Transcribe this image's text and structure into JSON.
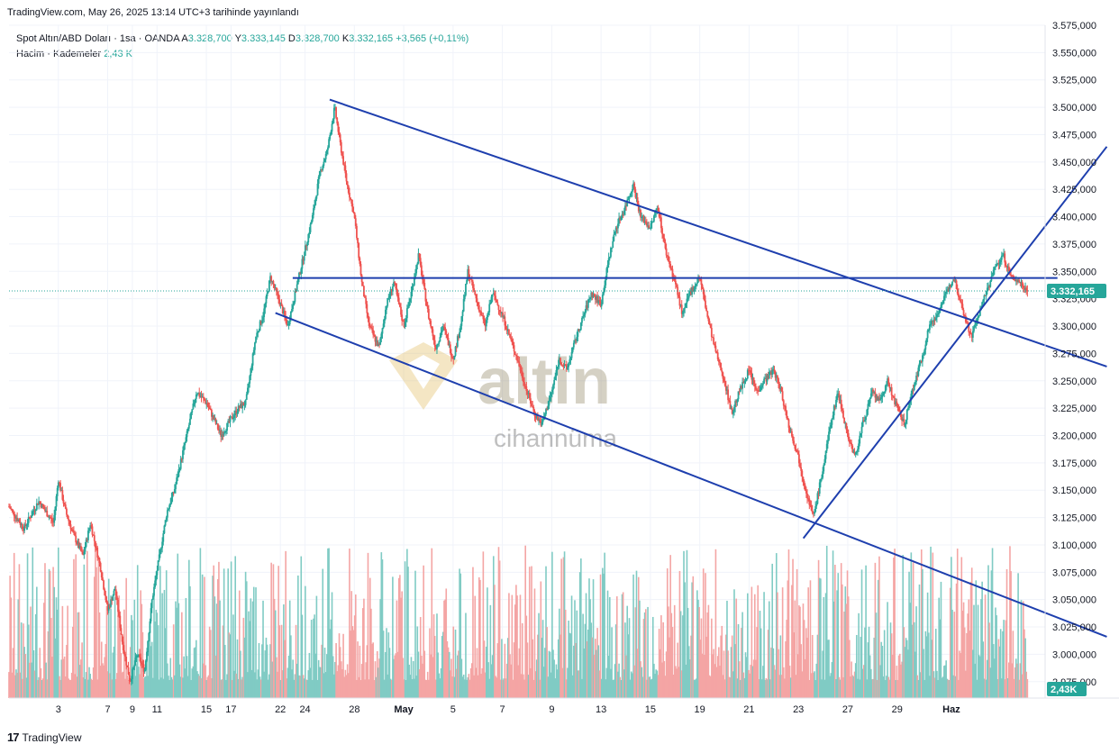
{
  "published_line": "TradingView.com, May 26, 2025 13:14 UTC+3 tarihinde yayınlandı",
  "legend": {
    "symbol": "Spot Altın/ABD Doları · 1sa · OANDA",
    "a_label": "A",
    "a_value": "3.328,700",
    "y_label": "Y",
    "y_value": "3.333,145",
    "d_label": "D",
    "d_value": "3.328,700",
    "k_label": "K",
    "k_value": "3.332,165",
    "change": "+3,565 (+0,11%)",
    "volume_label": "Hacim · Kademeler",
    "volume_value": "2,43 K"
  },
  "watermark": {
    "brand": "altin",
    "sub": "cihannüma"
  },
  "footer": {
    "logo": "TradingView"
  },
  "colors": {
    "up": "#26a69a",
    "down": "#ef5350",
    "line": "#1e3fae",
    "vol_up": "#80cbc4",
    "vol_down": "#f4a5a4"
  },
  "chart_data": {
    "type": "candlestick",
    "symbol": "Spot Altın/ABD Doları",
    "interval": "1sa",
    "y_range": [
      2960,
      3575
    ],
    "y_ticks": [
      "2.975,000",
      "3.000,000",
      "3.025,000",
      "3.050,000",
      "3.075,000",
      "3.100,000",
      "3.125,000",
      "3.150,000",
      "3.175,000",
      "3.200,000",
      "3.225,000",
      "3.250,000",
      "3.275,000",
      "3.300,000",
      "3.325,000",
      "3.350,000",
      "3.375,000",
      "3.400,000",
      "3.425,000",
      "3.450,000",
      "3.475,000",
      "3.500,000",
      "3.525,000",
      "3.550,000",
      "3.575,000"
    ],
    "y_tick_values": [
      2975,
      3000,
      3025,
      3050,
      3075,
      3100,
      3125,
      3150,
      3175,
      3200,
      3225,
      3250,
      3275,
      3300,
      3325,
      3350,
      3375,
      3400,
      3425,
      3450,
      3475,
      3500,
      3525,
      3550,
      3575
    ],
    "x_range_days": [
      0,
      42
    ],
    "x_ticks": [
      "3",
      "7",
      "9",
      "11",
      "15",
      "17",
      "22",
      "24",
      "28",
      "May",
      "5",
      "7",
      "9",
      "13",
      "15",
      "19",
      "21",
      "23",
      "27",
      "29",
      "Haz"
    ],
    "x_tick_days": [
      2,
      4,
      5,
      6,
      8,
      9,
      11,
      12,
      14,
      16,
      18,
      20,
      22,
      24,
      26,
      28,
      30,
      32,
      34,
      36,
      38.2
    ],
    "last_price_label": "3.332,165",
    "last_price": 3332.165,
    "volume_badge": "2,43K",
    "price_path": [
      [
        0,
        3135
      ],
      [
        0.6,
        3115
      ],
      [
        1.2,
        3140
      ],
      [
        1.8,
        3120
      ],
      [
        2.0,
        3160
      ],
      [
        2.3,
        3130
      ],
      [
        2.6,
        3110
      ],
      [
        3.0,
        3090
      ],
      [
        3.3,
        3120
      ],
      [
        3.7,
        3080
      ],
      [
        4.0,
        3040
      ],
      [
        4.3,
        3060
      ],
      [
        4.6,
        3010
      ],
      [
        4.9,
        2975
      ],
      [
        5.2,
        3000
      ],
      [
        5.5,
        2985
      ],
      [
        5.8,
        3050
      ],
      [
        6.1,
        3090
      ],
      [
        6.4,
        3130
      ],
      [
        6.7,
        3150
      ],
      [
        7.0,
        3180
      ],
      [
        7.3,
        3210
      ],
      [
        7.6,
        3240
      ],
      [
        8.0,
        3230
      ],
      [
        8.3,
        3215
      ],
      [
        8.6,
        3200
      ],
      [
        9.0,
        3215
      ],
      [
        9.3,
        3225
      ],
      [
        9.6,
        3230
      ],
      [
        10.0,
        3290
      ],
      [
        10.3,
        3310
      ],
      [
        10.6,
        3345
      ],
      [
        11.0,
        3320
      ],
      [
        11.3,
        3300
      ],
      [
        11.6,
        3330
      ],
      [
        12.0,
        3370
      ],
      [
        12.3,
        3400
      ],
      [
        12.6,
        3440
      ],
      [
        12.9,
        3460
      ],
      [
        13.2,
        3500
      ],
      [
        13.4,
        3470
      ],
      [
        13.7,
        3430
      ],
      [
        14.0,
        3400
      ],
      [
        14.3,
        3340
      ],
      [
        14.6,
        3300
      ],
      [
        15.0,
        3280
      ],
      [
        15.3,
        3320
      ],
      [
        15.6,
        3340
      ],
      [
        16.0,
        3300
      ],
      [
        16.3,
        3330
      ],
      [
        16.6,
        3365
      ],
      [
        17.0,
        3310
      ],
      [
        17.3,
        3280
      ],
      [
        17.6,
        3300
      ],
      [
        18.0,
        3270
      ],
      [
        18.3,
        3300
      ],
      [
        18.6,
        3350
      ],
      [
        19.0,
        3320
      ],
      [
        19.3,
        3300
      ],
      [
        19.6,
        3330
      ],
      [
        20.0,
        3310
      ],
      [
        20.3,
        3290
      ],
      [
        20.6,
        3270
      ],
      [
        21.0,
        3240
      ],
      [
        21.3,
        3220
      ],
      [
        21.6,
        3210
      ],
      [
        22.0,
        3240
      ],
      [
        22.3,
        3270
      ],
      [
        22.6,
        3260
      ],
      [
        23.0,
        3290
      ],
      [
        23.3,
        3310
      ],
      [
        23.6,
        3330
      ],
      [
        24.0,
        3320
      ],
      [
        24.3,
        3360
      ],
      [
        24.6,
        3390
      ],
      [
        25.0,
        3410
      ],
      [
        25.3,
        3430
      ],
      [
        25.6,
        3400
      ],
      [
        26.0,
        3390
      ],
      [
        26.3,
        3410
      ],
      [
        26.6,
        3370
      ],
      [
        27.0,
        3340
      ],
      [
        27.3,
        3310
      ],
      [
        27.6,
        3330
      ],
      [
        28.0,
        3345
      ],
      [
        28.3,
        3310
      ],
      [
        28.6,
        3280
      ],
      [
        29.0,
        3250
      ],
      [
        29.3,
        3220
      ],
      [
        29.6,
        3240
      ],
      [
        30.0,
        3260
      ],
      [
        30.3,
        3240
      ],
      [
        30.6,
        3250
      ],
      [
        31.0,
        3260
      ],
      [
        31.3,
        3240
      ],
      [
        31.6,
        3210
      ],
      [
        32.0,
        3180
      ],
      [
        32.3,
        3150
      ],
      [
        32.6,
        3125
      ],
      [
        33.0,
        3170
      ],
      [
        33.3,
        3210
      ],
      [
        33.6,
        3240
      ],
      [
        34.0,
        3200
      ],
      [
        34.3,
        3180
      ],
      [
        34.6,
        3210
      ],
      [
        35.0,
        3240
      ],
      [
        35.3,
        3230
      ],
      [
        35.6,
        3250
      ],
      [
        36.0,
        3225
      ],
      [
        36.3,
        3210
      ],
      [
        36.6,
        3240
      ],
      [
        37.0,
        3270
      ],
      [
        37.3,
        3300
      ],
      [
        37.6,
        3310
      ],
      [
        38.0,
        3330
      ],
      [
        38.3,
        3345
      ],
      [
        38.6,
        3320
      ],
      [
        39.0,
        3290
      ],
      [
        39.3,
        3310
      ],
      [
        39.6,
        3330
      ],
      [
        40.0,
        3355
      ],
      [
        40.3,
        3365
      ],
      [
        40.6,
        3345
      ],
      [
        41.0,
        3340
      ],
      [
        41.3,
        3332
      ]
    ],
    "trendlines": [
      {
        "from": [
          13.0,
          3507
        ],
        "to": [
          44.5,
          3263
        ]
      },
      {
        "from": [
          10.8,
          3312
        ],
        "to": [
          44.5,
          3016
        ]
      },
      {
        "from": [
          11.5,
          3344
        ],
        "to": [
          42.5,
          3344
        ]
      },
      {
        "from": [
          32.2,
          3106
        ],
        "to": [
          44.5,
          3464
        ]
      }
    ]
  }
}
